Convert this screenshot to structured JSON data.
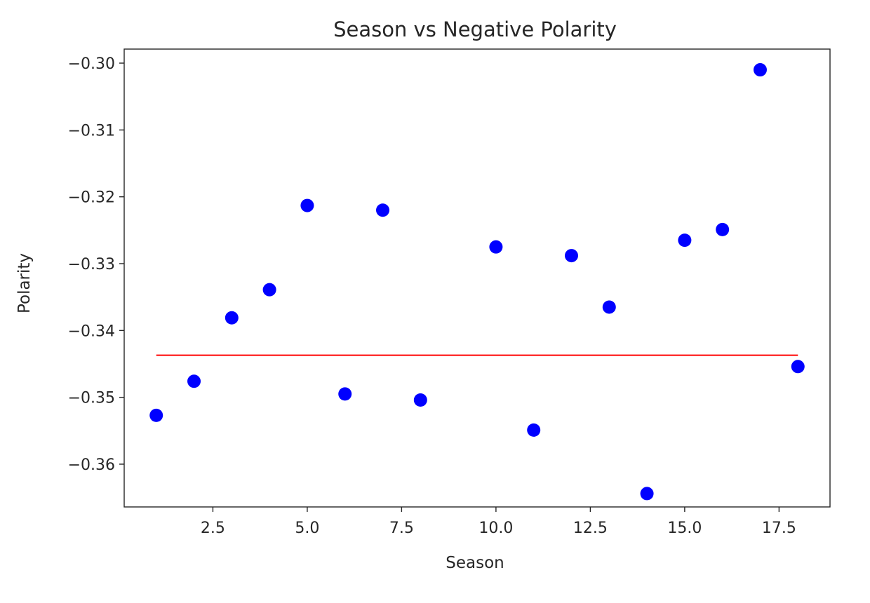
{
  "chart_data": {
    "type": "scatter",
    "title": "Season vs Negative Polarity",
    "xlabel": "Season",
    "ylabel": "Polarity",
    "xlim": [
      0.15,
      18.85
    ],
    "ylim": [
      -0.3664,
      -0.2979
    ],
    "xticks": [
      2.5,
      5.0,
      7.5,
      10.0,
      12.5,
      15.0,
      17.5
    ],
    "xtick_labels": [
      "2.5",
      "5.0",
      "7.5",
      "10.0",
      "12.5",
      "15.0",
      "17.5"
    ],
    "yticks": [
      -0.3,
      -0.31,
      -0.32,
      -0.33,
      -0.34,
      -0.35,
      -0.36
    ],
    "ytick_labels": [
      "−0.30",
      "−0.31",
      "−0.32",
      "−0.33",
      "−0.34",
      "−0.35",
      "−0.36"
    ],
    "grid": false,
    "series": [
      {
        "type": "scatter",
        "color": "#0000ff",
        "x": [
          1,
          2,
          3,
          4,
          5,
          6,
          7,
          8,
          10,
          11,
          12,
          13,
          14,
          15,
          16,
          17,
          18
        ],
        "y": [
          -0.3527,
          -0.3476,
          -0.3381,
          -0.3339,
          -0.3213,
          -0.3495,
          -0.322,
          -0.3504,
          -0.3275,
          -0.3549,
          -0.3288,
          -0.3365,
          -0.3644,
          -0.3265,
          -0.3249,
          -0.301,
          -0.3454
        ]
      },
      {
        "type": "line",
        "color": "#ff0000",
        "x": [
          1,
          18
        ],
        "y": [
          -0.3437,
          -0.3437
        ]
      }
    ]
  }
}
